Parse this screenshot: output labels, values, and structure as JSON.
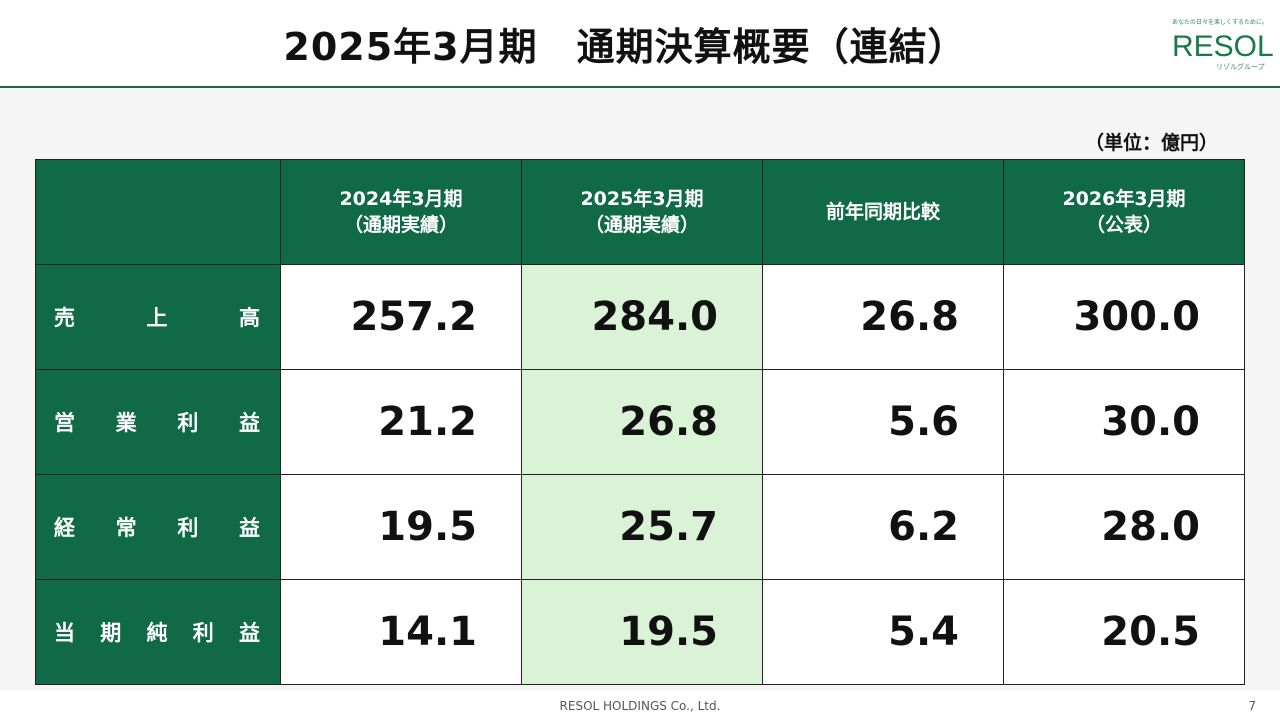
{
  "title": "2025年3月期　通期決算概要（連結）",
  "logo": {
    "tagline": "あなたの日々を楽しくするために。",
    "name": "RESOL",
    "sub": "リゾルグループ"
  },
  "unit_note": "（単位：億円）",
  "table": {
    "columns": [
      {
        "line1": "2024年3月期",
        "line2": "（通期実績）"
      },
      {
        "line1": "2025年3月期",
        "line2": "（通期実績）"
      },
      {
        "line1": "前年同期比較",
        "line2": ""
      },
      {
        "line1": "2026年3月期",
        "line2": "（公表）"
      }
    ],
    "rows": [
      {
        "label": [
          "売",
          "上",
          "高"
        ],
        "values": [
          "257.2",
          "284.0",
          "26.8",
          "300.0"
        ]
      },
      {
        "label": [
          "営",
          "業",
          "利",
          "益"
        ],
        "values": [
          "21.2",
          "26.8",
          "5.6",
          "30.0"
        ]
      },
      {
        "label": [
          "経",
          "常",
          "利",
          "益"
        ],
        "values": [
          "19.5",
          "25.7",
          "6.2",
          "28.0"
        ]
      },
      {
        "label": [
          "当",
          "期",
          "純",
          "利",
          "益"
        ],
        "values": [
          "14.1",
          "19.5",
          "5.4",
          "20.5"
        ]
      }
    ]
  },
  "footer": {
    "company": "RESOL HOLDINGS Co., Ltd.",
    "page_number": "7"
  },
  "colors": {
    "header_green": "#116a47",
    "highlight_column": "#daf2d5",
    "accent_line": "#1a6b3c"
  }
}
